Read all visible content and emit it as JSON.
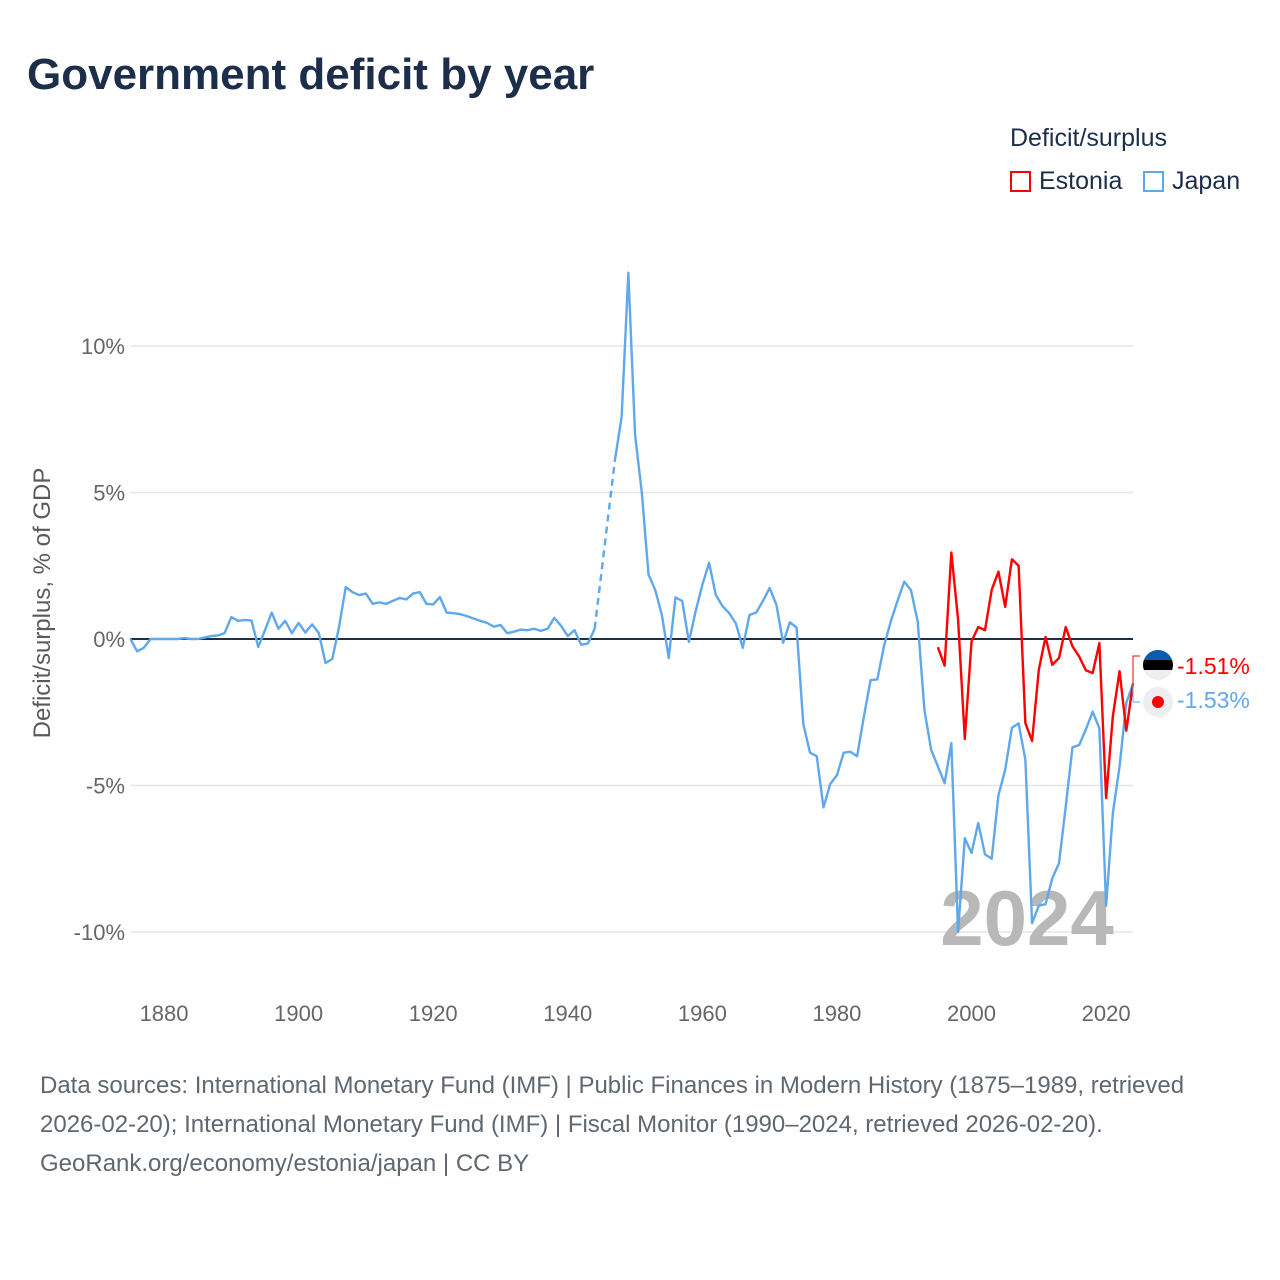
{
  "chart_data": {
    "type": "line",
    "title": "Government deficit by year",
    "ylabel": "Deficit/surplus, % of GDP",
    "xlabel": "",
    "xlim": [
      1875,
      2024
    ],
    "ylim": [
      -11.5,
      13
    ],
    "x_ticks": [
      1880,
      1900,
      1920,
      1940,
      1960,
      1980,
      2000,
      2020
    ],
    "y_ticks": [
      {
        "v": 10,
        "label": "10%"
      },
      {
        "v": 5,
        "label": "5%"
      },
      {
        "v": 0,
        "label": "0%"
      },
      {
        "v": -5,
        "label": "-5%"
      },
      {
        "v": -10,
        "label": "-10%"
      }
    ],
    "legend_title": "Deficit/surplus",
    "legend_placement": "top-right",
    "year_watermark": "2024",
    "series": [
      {
        "name": "Estonia",
        "color": "#ff0000",
        "end_label": "-1.51%",
        "start_year": 1995,
        "values": [
          -0.28,
          -0.91,
          2.95,
          0.67,
          -3.41,
          -0.08,
          0.41,
          0.3,
          1.68,
          2.3,
          1.1,
          2.72,
          2.5,
          -2.87,
          -3.48,
          -1.05,
          0.07,
          -0.88,
          -0.65,
          0.41,
          -0.25,
          -0.6,
          -1.07,
          -1.16,
          -0.14,
          -5.43,
          -2.64,
          -1.1,
          -3.13,
          -1.51
        ]
      },
      {
        "name": "Japan",
        "color": "#5fa8ec",
        "end_label": "-1.53%",
        "start_year": 1875,
        "values": [
          0,
          -0.42,
          -0.3,
          0,
          0,
          0,
          0,
          0,
          0.03,
          0,
          0,
          0.05,
          0.1,
          0.12,
          0.2,
          0.75,
          0.62,
          0.65,
          0.63,
          -0.27,
          0.3,
          0.9,
          0.35,
          0.62,
          0.2,
          0.55,
          0.22,
          0.5,
          0.2,
          -0.82,
          -0.68,
          0.4,
          1.77,
          1.6,
          1.5,
          1.55,
          1.2,
          1.25,
          1.2,
          1.3,
          1.4,
          1.35,
          1.55,
          1.6,
          1.2,
          1.18,
          1.43,
          0.9,
          0.88,
          0.85,
          0.78,
          0.7,
          0.62,
          0.55,
          0.42,
          0.48,
          0.2,
          0.25,
          0.32,
          0.3,
          0.35,
          0.28,
          0.35,
          0.72,
          0.45,
          0.1,
          0.3,
          -0.2,
          -0.15,
          0.35,
          null,
          null,
          6.1,
          7.58,
          12.5,
          6.96,
          5.0,
          2.2,
          1.67,
          0.8,
          -0.65,
          1.42,
          1.3,
          -0.1,
          0.95,
          1.85,
          2.6,
          1.5,
          1.12,
          0.88,
          0.52,
          -0.3,
          0.82,
          0.9,
          1.3,
          1.74,
          1.17,
          -0.13,
          0.57,
          0.39,
          -2.9,
          -3.88,
          -4.0,
          -5.75,
          -4.95,
          -4.65,
          -3.88,
          -3.85,
          -4.0,
          -2.65,
          -1.4,
          -1.38,
          -0.23,
          0.6,
          1.3,
          1.96,
          1.67,
          0.6,
          -2.42,
          -3.78,
          -4.35,
          -4.92,
          -3.55,
          -10.0,
          -6.8,
          -7.3,
          -6.28,
          -7.35,
          -7.5,
          -5.33,
          -4.47,
          -3.03,
          -2.88,
          -4.12,
          -9.7,
          -9.1,
          -9.05,
          -8.17,
          -7.65,
          -5.72,
          -3.7,
          -3.62,
          -3.08,
          -2.48,
          -3.05,
          -9.1,
          -5.95,
          -4.35,
          -2.18,
          -1.53
        ]
      }
    ]
  },
  "footer": {
    "sources": "Data sources: International Monetary Fund (IMF) | Public Finances in Modern History (1875–1989, retrieved 2026-02-20); International Monetary Fund (IMF) | Fiscal Monitor (1990–2024, retrieved 2026-02-20).",
    "credit": "GeoRank.org/economy/estonia/japan | CC BY"
  }
}
